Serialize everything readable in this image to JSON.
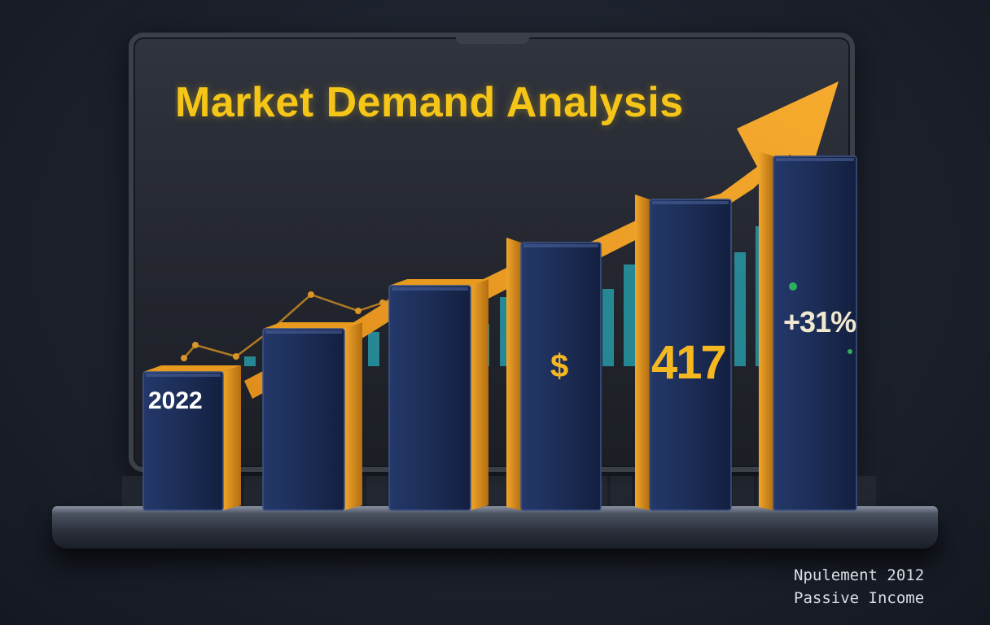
{
  "screen": {
    "title": "Market Demand Analysis"
  },
  "chart_data": {
    "type": "bar",
    "title": "Market Demand Analysis",
    "categories": [
      "",
      "",
      "",
      "",
      "",
      ""
    ],
    "values": [
      1,
      2,
      3,
      4,
      5,
      6
    ],
    "trend": "up",
    "labels": {
      "first_bar": "2022",
      "fourth_bar": "$",
      "fifth_bar": "417",
      "sixth_bar": "+31%"
    },
    "colors": {
      "bar_front": "#1c2d56",
      "bar_side": "#e89a1f",
      "trend_arrow": "#f2a12a",
      "title": "#f5c518",
      "background_bars": "#2aa9b8"
    }
  },
  "caption": {
    "line1": "Npulement 2012",
    "line2": "Passive Income"
  }
}
